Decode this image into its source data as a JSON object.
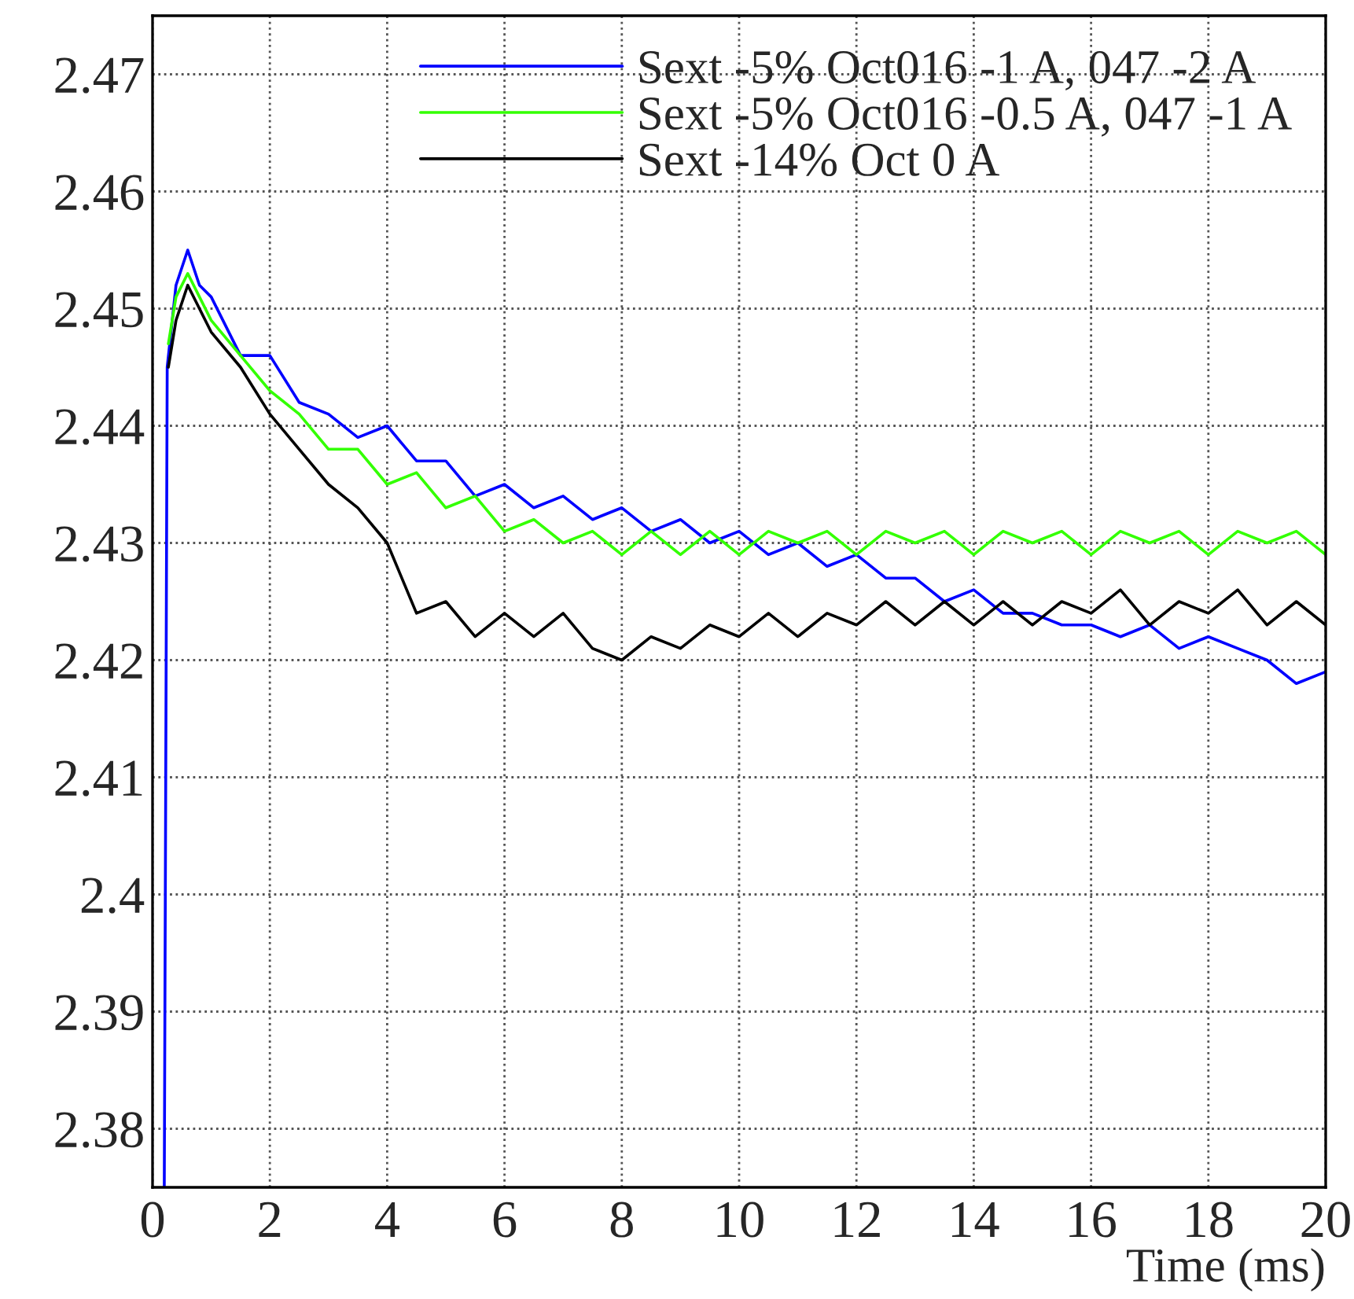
{
  "chart_data": {
    "type": "line",
    "xlabel": "Time (ms)",
    "xlim": [
      0,
      20
    ],
    "xticks": [
      0,
      2,
      4,
      6,
      8,
      10,
      12,
      14,
      16,
      18,
      20
    ],
    "ylim": [
      2.375,
      2.475
    ],
    "yticks": [
      2.38,
      2.39,
      2.4,
      2.41,
      2.42,
      2.43,
      2.44,
      2.45,
      2.46,
      2.47
    ],
    "grid": true,
    "legend": "top right",
    "marker": "none",
    "line_style": "solid",
    "series": [
      {
        "name": "Sext -5% Oct016 -1 A, 047 -2 A",
        "color": "#0000ff",
        "x": [
          0.2,
          0.25,
          0.4,
          0.6,
          0.8,
          1.0,
          1.5,
          2.0,
          2.5,
          3.0,
          3.5,
          4.0,
          4.5,
          5.0,
          5.5,
          6.0,
          6.5,
          7.0,
          7.5,
          8.0,
          8.5,
          9.0,
          9.5,
          10.0,
          10.5,
          11.0,
          11.5,
          12.0,
          12.5,
          13.0,
          13.5,
          14.0,
          14.5,
          15.0,
          15.5,
          16.0,
          16.5,
          17.0,
          17.5,
          18.0,
          18.5,
          19.0,
          19.5,
          20.0
        ],
        "values": [
          2.375,
          2.445,
          2.452,
          2.455,
          2.452,
          2.451,
          2.446,
          2.446,
          2.442,
          2.441,
          2.439,
          2.44,
          2.437,
          2.437,
          2.434,
          2.435,
          2.433,
          2.434,
          2.432,
          2.433,
          2.431,
          2.432,
          2.43,
          2.431,
          2.429,
          2.43,
          2.428,
          2.429,
          2.427,
          2.427,
          2.425,
          2.426,
          2.424,
          2.424,
          2.423,
          2.423,
          2.422,
          2.423,
          2.421,
          2.422,
          2.421,
          2.42,
          2.418,
          2.419
        ]
      },
      {
        "name": "Sext -5% Oct016 -0.5 A, 047 -1 A",
        "color": "#33ff00",
        "x": [
          0.27,
          0.4,
          0.6,
          0.8,
          1.0,
          1.5,
          2.0,
          2.5,
          3.0,
          3.5,
          4.0,
          4.5,
          5.0,
          5.5,
          6.0,
          6.5,
          7.0,
          7.5,
          8.0,
          8.5,
          9.0,
          9.5,
          10.0,
          10.5,
          11.0,
          11.5,
          12.0,
          12.5,
          13.0,
          13.5,
          14.0,
          14.5,
          15.0,
          15.5,
          16.0,
          16.5,
          17.0,
          17.5,
          18.0,
          18.5,
          19.0,
          19.5,
          20.0
        ],
        "values": [
          2.447,
          2.451,
          2.453,
          2.451,
          2.449,
          2.446,
          2.443,
          2.441,
          2.438,
          2.438,
          2.435,
          2.436,
          2.433,
          2.434,
          2.431,
          2.432,
          2.43,
          2.431,
          2.429,
          2.431,
          2.429,
          2.431,
          2.429,
          2.431,
          2.43,
          2.431,
          2.429,
          2.431,
          2.43,
          2.431,
          2.429,
          2.431,
          2.43,
          2.431,
          2.429,
          2.431,
          2.43,
          2.431,
          2.429,
          2.431,
          2.43,
          2.431,
          2.429
        ]
      },
      {
        "name": "Sext -14% Oct 0 A",
        "color": "#000000",
        "x": [
          0.27,
          0.4,
          0.6,
          0.8,
          1.0,
          1.5,
          2.0,
          2.5,
          3.0,
          3.5,
          4.0,
          4.5,
          5.0,
          5.5,
          6.0,
          6.5,
          7.0,
          7.5,
          8.0,
          8.5,
          9.0,
          9.5,
          10.0,
          10.5,
          11.0,
          11.5,
          12.0,
          12.5,
          13.0,
          13.5,
          14.0,
          14.5,
          15.0,
          15.5,
          16.0,
          16.5,
          17.0,
          17.5,
          18.0,
          18.5,
          19.0,
          19.5,
          20.0
        ],
        "values": [
          2.445,
          2.449,
          2.452,
          2.45,
          2.448,
          2.445,
          2.441,
          2.438,
          2.435,
          2.433,
          2.43,
          2.424,
          2.425,
          2.422,
          2.424,
          2.422,
          2.424,
          2.421,
          2.42,
          2.422,
          2.421,
          2.423,
          2.422,
          2.424,
          2.422,
          2.424,
          2.423,
          2.425,
          2.423,
          2.425,
          2.423,
          2.425,
          2.423,
          2.425,
          2.424,
          2.426,
          2.423,
          2.425,
          2.424,
          2.426,
          2.423,
          2.425,
          2.423
        ]
      }
    ]
  }
}
